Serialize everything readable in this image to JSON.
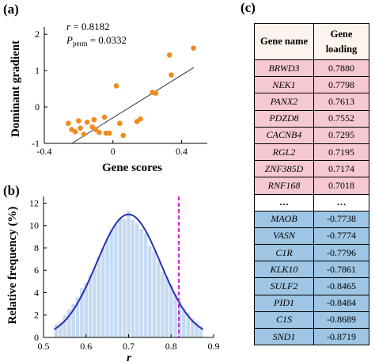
{
  "chart_data": [
    {
      "id": "a",
      "type": "scatter",
      "panel_label": "(a)",
      "xlabel": "Gene scores",
      "ylabel": "Dominant gradient",
      "xlim": [
        -0.4,
        0.55
      ],
      "ylim": [
        -1,
        2.2
      ],
      "xticks": [
        -0.4,
        0,
        0.4
      ],
      "xtick_labels": [
        "-0.4",
        "0",
        "0.4"
      ],
      "yticks": [
        -1,
        0,
        1,
        2
      ],
      "ytick_labels": [
        "-1",
        "0",
        "1",
        "2"
      ],
      "annotation_r_label": "r",
      "annotation_r_value": " = 0.8182",
      "annotation_p_label": "P",
      "annotation_p_sub": "perm",
      "annotation_p_value": " = 0.0332",
      "point_color": "#f28a1e",
      "line_color": "#333333",
      "fit_line": {
        "x": [
          -0.24,
          0.47
        ],
        "y": [
          -1.0,
          1.08
        ]
      },
      "points": [
        {
          "x": -0.26,
          "y": -0.45
        },
        {
          "x": -0.24,
          "y": -0.62
        },
        {
          "x": -0.22,
          "y": -0.68
        },
        {
          "x": -0.2,
          "y": -0.38
        },
        {
          "x": -0.19,
          "y": -0.58
        },
        {
          "x": -0.17,
          "y": -0.75
        },
        {
          "x": -0.15,
          "y": -0.42
        },
        {
          "x": -0.12,
          "y": -0.55
        },
        {
          "x": -0.11,
          "y": -0.35
        },
        {
          "x": -0.1,
          "y": -0.62
        },
        {
          "x": -0.08,
          "y": -0.7
        },
        {
          "x": -0.05,
          "y": -0.28
        },
        {
          "x": -0.04,
          "y": -0.72
        },
        {
          "x": -0.02,
          "y": -0.72
        },
        {
          "x": 0.02,
          "y": 0.58
        },
        {
          "x": 0.04,
          "y": -0.45
        },
        {
          "x": 0.06,
          "y": -0.78
        },
        {
          "x": 0.14,
          "y": -0.4
        },
        {
          "x": 0.16,
          "y": -0.33
        },
        {
          "x": 0.23,
          "y": 0.4
        },
        {
          "x": 0.25,
          "y": 0.38
        },
        {
          "x": 0.33,
          "y": 1.43
        },
        {
          "x": 0.34,
          "y": 0.88
        },
        {
          "x": 0.47,
          "y": 1.62
        }
      ]
    },
    {
      "id": "b",
      "type": "bar",
      "panel_label": "(b)",
      "xlabel": "r",
      "ylabel": "Relative frequency (%)",
      "xlim": [
        0.5,
        0.9
      ],
      "ylim": [
        0,
        12.6
      ],
      "xticks": [
        0.5,
        0.6,
        0.7,
        0.8,
        0.9
      ],
      "xtick_labels": [
        "0.5",
        "0.6",
        "0.7",
        "0.8",
        "0.9"
      ],
      "yticks": [
        0,
        2,
        4,
        6,
        8,
        10,
        12
      ],
      "ytick_labels": [
        "0",
        "2",
        "4",
        "6",
        "8",
        "10",
        "12"
      ],
      "bar_color": "#c6dbf1",
      "curve_color": "#2a30b0",
      "observed_line_color": "#d21fd2",
      "observed_r": 0.8182,
      "curve_mean": 0.7,
      "curve_sd": 0.075,
      "curve_peak": 11.0,
      "bin_width": 0.01,
      "bins_x": [
        0.53,
        0.54,
        0.55,
        0.56,
        0.57,
        0.58,
        0.59,
        0.6,
        0.61,
        0.62,
        0.63,
        0.64,
        0.65,
        0.66,
        0.67,
        0.68,
        0.69,
        0.7,
        0.71,
        0.72,
        0.73,
        0.74,
        0.75,
        0.76,
        0.77,
        0.78,
        0.79,
        0.8,
        0.81,
        0.82,
        0.83,
        0.84,
        0.85,
        0.86,
        0.87
      ],
      "values": [
        1.2,
        1.4,
        2.0,
        2.5,
        3.0,
        3.6,
        4.4,
        4.9,
        5.6,
        6.2,
        7.2,
        7.9,
        8.9,
        9.6,
        10.1,
        10.7,
        10.6,
        11.3,
        10.5,
        10.2,
        9.7,
        9.3,
        8.2,
        7.7,
        6.8,
        5.9,
        5.4,
        4.7,
        3.9,
        3.2,
        2.6,
        2.2,
        1.7,
        1.4,
        1.0
      ]
    }
  ],
  "gene_table": {
    "panel_label": "(c)",
    "header": {
      "name": "Gene name",
      "loading": "Gene loading"
    },
    "positive": [
      {
        "name": "BRWD3",
        "loading": "0.7880"
      },
      {
        "name": "NEK1",
        "loading": "0.7798"
      },
      {
        "name": "PANX2",
        "loading": "0.7613"
      },
      {
        "name": "PDZD8",
        "loading": "0.7552"
      },
      {
        "name": "CACNB4",
        "loading": "0.7295"
      },
      {
        "name": "RGL2",
        "loading": "0.7195"
      },
      {
        "name": "ZNF385D",
        "loading": "0.7174"
      },
      {
        "name": "RNF168",
        "loading": "0.7018"
      }
    ],
    "ellipsis": {
      "name": "…",
      "loading": "…"
    },
    "negative": [
      {
        "name": "MAOB",
        "loading": "-0.7738"
      },
      {
        "name": "VASN",
        "loading": "-0.7774"
      },
      {
        "name": "C1R",
        "loading": "-0.7796"
      },
      {
        "name": "KLK10",
        "loading": "-0.7861"
      },
      {
        "name": "SULF2",
        "loading": "-0.8465"
      },
      {
        "name": "PID1",
        "loading": "-0.8484"
      },
      {
        "name": "C1S",
        "loading": "-0.8689"
      },
      {
        "name": "SND1",
        "loading": "-0.8719"
      }
    ]
  }
}
